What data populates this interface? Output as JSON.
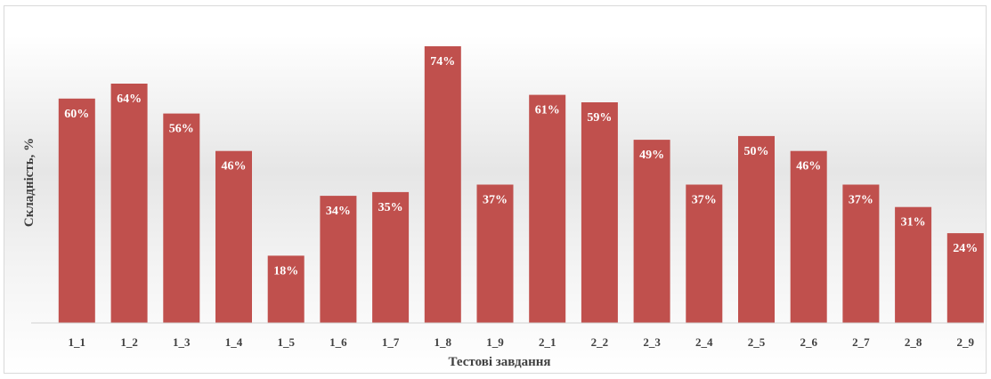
{
  "chart_data": {
    "type": "bar",
    "title": "",
    "xlabel": "Тестові завдання",
    "ylabel": "Складність, %",
    "categories": [
      "1_1",
      "1_2",
      "1_3",
      "1_4",
      "1_5",
      "1_6",
      "1_7",
      "1_8",
      "1_9",
      "2_1",
      "2_2",
      "2_3",
      "2_4",
      "2_5",
      "2_6",
      "2_7",
      "2_8",
      "2_9"
    ],
    "values": [
      60,
      64,
      56,
      46,
      18,
      34,
      35,
      74,
      37,
      61,
      59,
      49,
      37,
      50,
      46,
      37,
      31,
      24
    ],
    "data_labels": [
      "60%",
      "64%",
      "56%",
      "46%",
      "18%",
      "34%",
      "35%",
      "74%",
      "37%",
      "61%",
      "59%",
      "49%",
      "37%",
      "50%",
      "46%",
      "37%",
      "31%",
      "24%"
    ],
    "ylim": [
      0,
      74
    ],
    "grid": false,
    "legend": "none",
    "bar_color": "#c0504d"
  }
}
